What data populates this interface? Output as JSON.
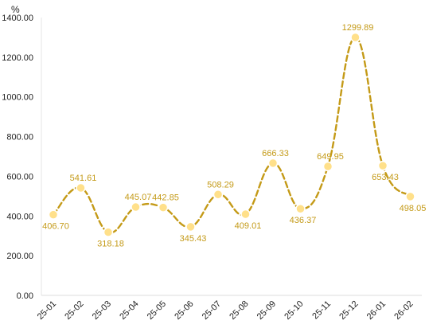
{
  "chart_data": {
    "type": "line",
    "unit_label": "%",
    "categories": [
      "25-01",
      "25-02",
      "25-03",
      "25-04",
      "25-05",
      "25-06",
      "25-07",
      "25-08",
      "25-09",
      "25-10",
      "25-11",
      "25-12",
      "26-01",
      "26-02"
    ],
    "series": [
      {
        "values": [
          406.7,
          541.61,
          318.18,
          445.07,
          442.85,
          345.43,
          508.29,
          409.01,
          666.33,
          436.37,
          649.95,
          1299.89,
          653.43,
          498.05
        ],
        "labels": [
          "406.70",
          "541.61",
          "318.18",
          "445.07",
          "442.85",
          "345.43",
          "508.29",
          "409.01",
          "666.33",
          "436.37",
          "649.95",
          "1299.89",
          "653.43",
          "498.05"
        ]
      }
    ],
    "y_ticks": [
      "0.00",
      "200.00",
      "400.00",
      "600.00",
      "800.00",
      "1000.00",
      "1200.00",
      "1400.00"
    ],
    "ylim": [
      0,
      1400
    ],
    "grid": false,
    "legend": "none",
    "line_style": "dashed",
    "line_color": "#C49A17",
    "marker_fill": "#FFE08A",
    "marker_stroke": "#FFFFFF",
    "label_color": "#C49A17"
  }
}
